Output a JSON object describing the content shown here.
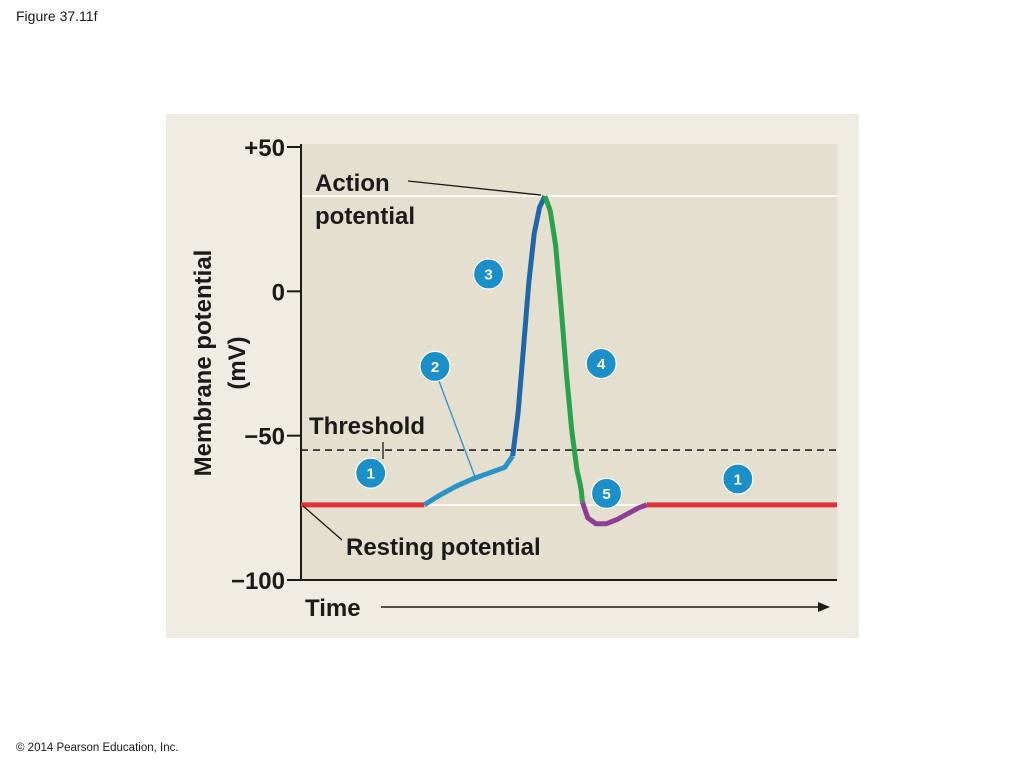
{
  "figure_label": "Figure 37.11f",
  "copyright": "© 2014 Pearson Education, Inc.",
  "colors": {
    "panel": "#efede3",
    "plot": "#e4dfcf",
    "resting": "#e03238",
    "depolarizing": "#2a93c7",
    "rising": "#1f67a8",
    "falling": "#2aa24d",
    "undershoot": "#8e3e94",
    "badge": "#1a8fc8",
    "threshold": "#222222"
  },
  "chart_data": {
    "type": "line",
    "title": "",
    "ylabel_line1": "Membrane potential",
    "ylabel_line2": "(mV)",
    "xlabel": "Time",
    "ylim": [
      -100,
      50
    ],
    "yticks": [
      {
        "value": 50,
        "label": "+50"
      },
      {
        "value": 0,
        "label": "0"
      },
      {
        "value": -50,
        "label": "−50"
      },
      {
        "value": -100,
        "label": "−100"
      }
    ],
    "xlim": [
      0,
      100
    ],
    "threshold": {
      "value": -55,
      "label": "Threshold"
    },
    "resting": {
      "value": -74,
      "label": "Resting potential"
    },
    "action_potential_label_line1": "Action",
    "action_potential_label_line2": "potential",
    "peak": {
      "x": 45.5,
      "y": 33
    },
    "segments": [
      {
        "phase": "1",
        "color_key": "resting",
        "points": [
          [
            0,
            -74
          ],
          [
            23,
            -74
          ]
        ]
      },
      {
        "phase": "2",
        "color_key": "depolarizing",
        "points": [
          [
            23,
            -74
          ],
          [
            26,
            -70.5
          ],
          [
            29,
            -67.5
          ],
          [
            32,
            -65
          ],
          [
            35,
            -63
          ],
          [
            38,
            -61
          ],
          [
            39.5,
            -57
          ]
        ]
      },
      {
        "phase": "3",
        "color_key": "rising",
        "points": [
          [
            39.5,
            -57
          ],
          [
            40.5,
            -42
          ],
          [
            41.5,
            -20
          ],
          [
            42.5,
            3
          ],
          [
            43.5,
            20
          ],
          [
            44.5,
            29
          ],
          [
            45.5,
            33
          ]
        ]
      },
      {
        "phase": "4",
        "color_key": "falling",
        "points": [
          [
            45.5,
            33
          ],
          [
            46.5,
            28
          ],
          [
            47.5,
            16
          ],
          [
            48.5,
            -5
          ],
          [
            49.5,
            -28
          ],
          [
            50.5,
            -48
          ],
          [
            51.5,
            -62
          ],
          [
            52,
            -66
          ],
          [
            52.3,
            -69
          ],
          [
            52.5,
            -73
          ]
        ]
      },
      {
        "phase": "5",
        "color_key": "undershoot",
        "points": [
          [
            52.5,
            -73
          ],
          [
            53.5,
            -78.5
          ],
          [
            55,
            -80.5
          ],
          [
            57,
            -80.5
          ],
          [
            59,
            -79
          ],
          [
            61,
            -77
          ],
          [
            63,
            -75
          ],
          [
            64.5,
            -74
          ]
        ]
      },
      {
        "phase": "1",
        "color_key": "resting",
        "points": [
          [
            64.5,
            -74
          ],
          [
            100,
            -74
          ]
        ]
      }
    ],
    "phase_markers": [
      {
        "label": "1",
        "x": 13,
        "y": -63
      },
      {
        "label": "2",
        "x": 25,
        "y": -26
      },
      {
        "label": "3",
        "x": 35,
        "y": 6
      },
      {
        "label": "4",
        "x": 56,
        "y": -25
      },
      {
        "label": "5",
        "x": 57,
        "y": -70
      },
      {
        "label": "1",
        "x": 81.5,
        "y": -65
      }
    ]
  }
}
